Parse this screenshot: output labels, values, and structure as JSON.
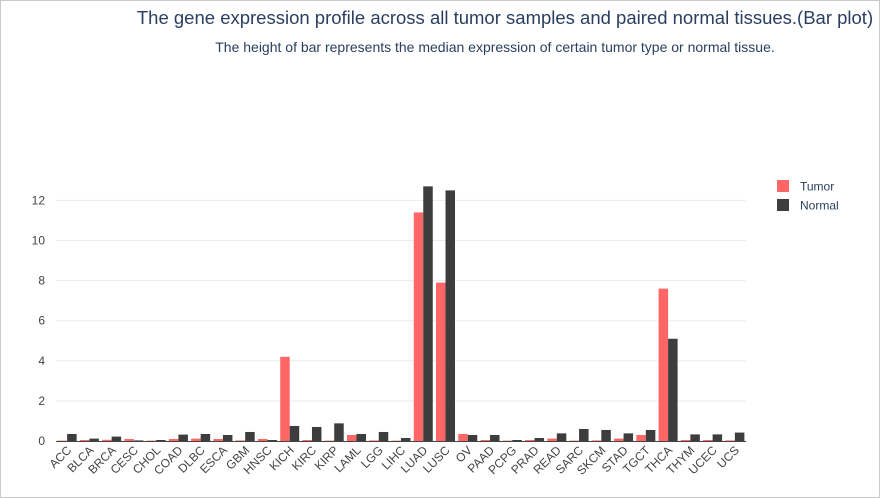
{
  "chart_data": {
    "type": "bar",
    "title": "The gene expression profile across all tumor samples and paired normal tissues.(Bar plot)",
    "subtitle": "The height of bar represents the median expression of certain tumor type or normal tissue.",
    "xlabel": "",
    "ylabel": "",
    "ylim": [
      0,
      13
    ],
    "yticks": [
      0,
      2,
      4,
      6,
      8,
      10,
      12
    ],
    "grid": true,
    "legend_position": "top-right",
    "categories": [
      "ACC",
      "BLCA",
      "BRCA",
      "CESC",
      "CHOL",
      "COAD",
      "DLBC",
      "ESCA",
      "GBM",
      "HNSC",
      "KICH",
      "KIRC",
      "KIRP",
      "LAML",
      "LGG",
      "LIHC",
      "LUAD",
      "LUSC",
      "OV",
      "PAAD",
      "PCPG",
      "PRAD",
      "READ",
      "SARC",
      "SKCM",
      "STAD",
      "TGCT",
      "THCA",
      "THYM",
      "UCEC",
      "UCS"
    ],
    "series": [
      {
        "name": "Tumor",
        "color": "#ff6666",
        "values": [
          0.02,
          0.05,
          0.06,
          0.1,
          0.02,
          0.1,
          0.12,
          0.1,
          0.03,
          0.1,
          4.2,
          0.05,
          0.02,
          0.3,
          0.03,
          0.02,
          11.4,
          7.9,
          0.35,
          0.05,
          0.02,
          0.05,
          0.12,
          0.02,
          0.03,
          0.12,
          0.3,
          7.6,
          0.05,
          0.05,
          0.03
        ]
      },
      {
        "name": "Normal",
        "color": "#3d3d3d",
        "values": [
          0.35,
          0.12,
          0.22,
          0.03,
          0.05,
          0.32,
          0.35,
          0.3,
          0.45,
          0.05,
          0.75,
          0.7,
          0.88,
          0.35,
          0.45,
          0.15,
          12.7,
          12.5,
          0.3,
          0.3,
          0.05,
          0.15,
          0.38,
          0.6,
          0.55,
          0.38,
          0.55,
          5.1,
          0.33,
          0.33,
          0.42
        ]
      }
    ]
  }
}
